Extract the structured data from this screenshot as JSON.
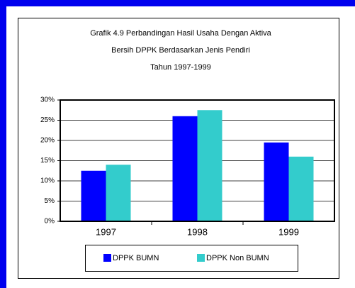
{
  "chart_data": {
    "type": "bar",
    "title": [
      "Grafik 4.9  Perbandingan Hasil Usaha Dengan Aktiva",
      "Bersih DPPK Berdasarkan Jenis Pendiri",
      "Tahun 1997-1999"
    ],
    "categories": [
      "1997",
      "1998",
      "1999"
    ],
    "series": [
      {
        "name": "DPPK BUMN",
        "color": "#0000ff",
        "values": [
          12.5,
          26,
          19.5
        ]
      },
      {
        "name": "DPPK Non BUMN",
        "color": "#33cccc",
        "values": [
          14,
          27.5,
          16
        ]
      }
    ],
    "ylim": [
      0,
      30
    ],
    "yticks": [
      {
        "value": 0,
        "label": "0%"
      },
      {
        "value": 5,
        "label": "5%"
      },
      {
        "value": 10,
        "label": "10%"
      },
      {
        "value": 15,
        "label": "15%"
      },
      {
        "value": 20,
        "label": "20%"
      },
      {
        "value": 25,
        "label": "25%"
      },
      {
        "value": 30,
        "label": "30%"
      }
    ],
    "grid": true,
    "legend": "bottom"
  }
}
